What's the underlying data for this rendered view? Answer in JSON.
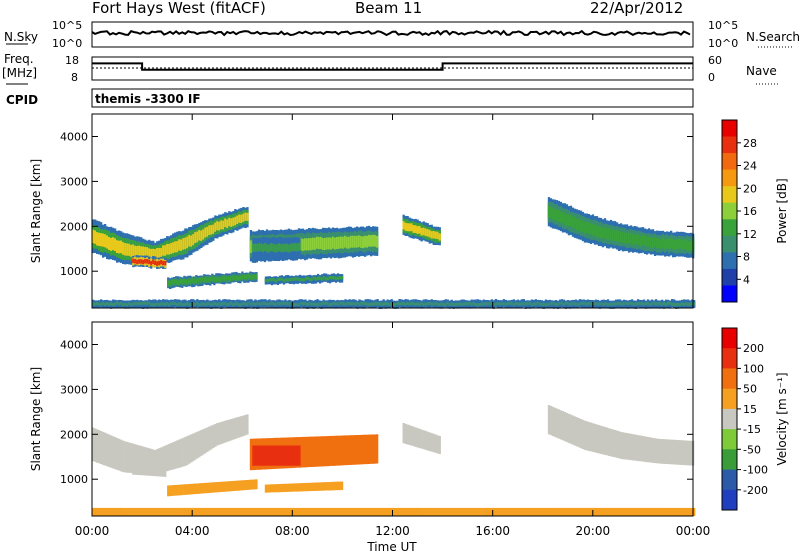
{
  "header": {
    "station": "Fort Hays West (fitACF)",
    "beam": "Beam 11",
    "date": "22/Apr/2012"
  },
  "noise_panel": {
    "left_label": "N.Sky",
    "right_label": "N.Search",
    "left_ticks": [
      "10^5",
      "10^0"
    ],
    "right_ticks": [
      "10^5",
      "10^0"
    ]
  },
  "freq_panel": {
    "left_label_1": "Freq.",
    "left_label_2": "[MHz]",
    "left_ticks": [
      "18",
      "8"
    ],
    "right_label": "Nave",
    "right_ticks": [
      "60",
      "0"
    ],
    "freq_steps": [
      {
        "t": 0,
        "mhz": 15.2
      },
      {
        "t": 2,
        "mhz": 12.5
      },
      {
        "t": 14,
        "mhz": 15.2
      },
      {
        "t": 24,
        "mhz": 15.2
      }
    ]
  },
  "cpid": {
    "label": "CPID",
    "value": "themis -3300 IF"
  },
  "x_axis": {
    "label": "Time UT",
    "ticks": [
      "00:00",
      "04:00",
      "08:00",
      "12:00",
      "16:00",
      "20:00",
      "00:00"
    ],
    "range_hours": [
      0,
      24
    ]
  },
  "y_axis": {
    "label": "Slant Range [km]",
    "ticks": [
      "1000",
      "2000",
      "3000",
      "4000"
    ],
    "range_km": [
      180,
      4500
    ]
  },
  "power_colorbar": {
    "title": "Power [dB]",
    "ticks": [
      "28",
      "24",
      "20",
      "16",
      "12",
      "8",
      "4"
    ],
    "range": [
      0,
      32
    ],
    "colors": [
      "#0000ff",
      "#1f40a8",
      "#2e6fb0",
      "#3a8f6e",
      "#3aa23a",
      "#8ccf3a",
      "#e8c81a",
      "#f59a10",
      "#f26a10",
      "#e83010",
      "#e80000"
    ]
  },
  "velocity_colorbar": {
    "title": "Velocity [m s⁻¹]",
    "ticks": [
      "200",
      "100",
      "50",
      "15",
      "-15",
      "-50",
      "-100",
      "-200"
    ],
    "colors": [
      "#1f3fbf",
      "#2a5aa8",
      "#3a9d3a",
      "#7ecb3a",
      "#c8c8c0",
      "#f5a020",
      "#f07010",
      "#e83010",
      "#e80000"
    ]
  },
  "chart_data": {
    "type": "heatmap",
    "title": "Fort Hays West (fitACF)",
    "xlabel": "Time UT",
    "ylabel": "Slant Range [km]",
    "xlim": [
      0,
      24
    ],
    "ylim": [
      180,
      4500
    ],
    "power_bands": [
      {
        "start": 0.0,
        "end": 6.2,
        "r_lo": [
          1400,
          1150,
          1100,
          1300,
          1750,
          2000
        ],
        "r_hi": [
          2150,
          1850,
          1650,
          1950,
          2250,
          2450
        ],
        "power": 18,
        "vel_color": "#c8c8c0"
      },
      {
        "start": 1.6,
        "end": 2.9,
        "r_lo": [
          1100,
          1050
        ],
        "r_hi": [
          1350,
          1300
        ],
        "power": 30,
        "vel_color": "#c8c8c0"
      },
      {
        "start": 3.0,
        "end": 6.6,
        "r_lo": [
          620,
          780
        ],
        "r_hi": [
          860,
          1000
        ],
        "power": 14,
        "vel_color": "#f5a020"
      },
      {
        "start": 6.3,
        "end": 11.4,
        "r_lo": [
          1200,
          1350
        ],
        "r_hi": [
          1900,
          2000
        ],
        "power": 16,
        "vel_color": "#f07010"
      },
      {
        "start": 6.4,
        "end": 8.3,
        "r_lo": [
          1300,
          1300
        ],
        "r_hi": [
          1750,
          1750
        ],
        "power": 12,
        "vel_color": "#e83010"
      },
      {
        "start": 6.9,
        "end": 10.0,
        "r_lo": [
          700,
          760
        ],
        "r_hi": [
          880,
          950
        ],
        "power": 12,
        "vel_color": "#f5a020"
      },
      {
        "start": 12.4,
        "end": 13.9,
        "r_lo": [
          1800,
          1550
        ],
        "r_hi": [
          2250,
          1950
        ],
        "power": 18,
        "vel_color": "#c8c8c0"
      },
      {
        "start": 18.2,
        "end": 24.0,
        "r_lo": [
          2000,
          1650,
          1450,
          1350,
          1300
        ],
        "r_hi": [
          2650,
          2300,
          2050,
          1900,
          1850
        ],
        "power": 14,
        "vel_color": "#c8c8c0"
      },
      {
        "start": 0.0,
        "end": 24.0,
        "r_lo": [
          180,
          180
        ],
        "r_hi": [
          360,
          360
        ],
        "power": 10,
        "vel_color": "#f5a020"
      }
    ]
  }
}
